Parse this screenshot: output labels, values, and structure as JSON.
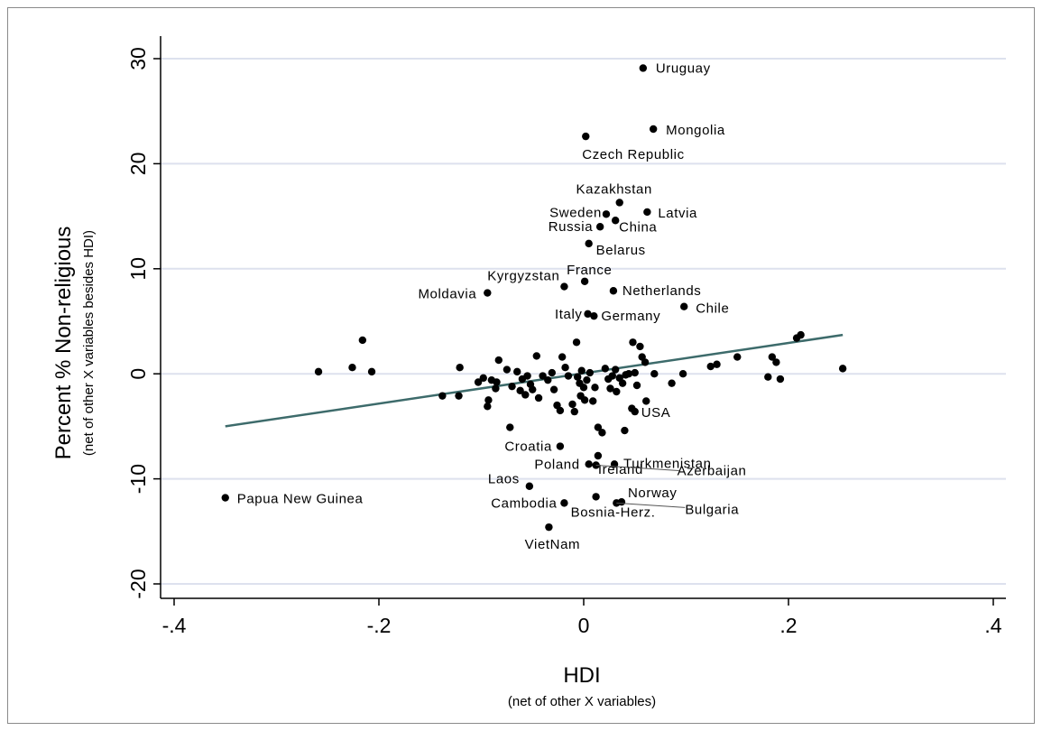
{
  "chart_data": {
    "type": "scatter",
    "xlabel": "HDI",
    "xlabel_sub": "(net of other X variables)",
    "ylabel": "Percent % Non-religious",
    "ylabel_sub": "(net of other X variables besides HDI)",
    "xlim": [
      -0.4,
      0.4
    ],
    "ylim": [
      -20,
      30
    ],
    "x_ticks": [
      -0.4,
      -0.2,
      0,
      0.2,
      0.4
    ],
    "x_tick_labels": [
      "-.4",
      "-.2",
      "0",
      ".2",
      ".4"
    ],
    "y_ticks": [
      -20,
      -10,
      0,
      10,
      20,
      30
    ],
    "y_tick_labels": [
      "-20",
      "-10",
      "0",
      "10",
      "20",
      "30"
    ],
    "grid": "horizontal",
    "colors": {
      "point": "#000000",
      "fit_line": "#3d6b6b",
      "grid": "#dde1ee",
      "axis": "#000000"
    },
    "fit_line": {
      "x": [
        -0.35,
        0.253
      ],
      "y": [
        -5.0,
        3.7
      ]
    },
    "labeled_points": [
      {
        "label": "Uruguay",
        "x": 0.058,
        "y": 29.1
      },
      {
        "label": "Mongolia",
        "x": 0.068,
        "y": 23.3
      },
      {
        "label": "Czech Republic",
        "x": 0.002,
        "y": 22.6
      },
      {
        "label": "Kazakhstan",
        "x": 0.035,
        "y": 16.3
      },
      {
        "label": "Sweden",
        "x": 0.022,
        "y": 15.2
      },
      {
        "label": "Latvia",
        "x": 0.062,
        "y": 15.4
      },
      {
        "label": "China",
        "x": 0.031,
        "y": 14.6
      },
      {
        "label": "Russia",
        "x": 0.016,
        "y": 14.0
      },
      {
        "label": "Belarus",
        "x": 0.005,
        "y": 12.4
      },
      {
        "label": "France",
        "x": 0.001,
        "y": 8.8
      },
      {
        "label": "Kyrgyzstan",
        "x": -0.019,
        "y": 8.3
      },
      {
        "label": "Moldavia",
        "x": -0.094,
        "y": 7.7
      },
      {
        "label": "Netherlands",
        "x": 0.029,
        "y": 7.9
      },
      {
        "label": "Chile",
        "x": 0.098,
        "y": 6.4
      },
      {
        "label": "Italy",
        "x": 0.004,
        "y": 5.7
      },
      {
        "label": "Germany",
        "x": 0.01,
        "y": 5.5
      },
      {
        "label": "USA",
        "x": 0.05,
        "y": -3.6
      },
      {
        "label": "Croatia",
        "x": -0.023,
        "y": -6.9
      },
      {
        "label": "Ireland",
        "x": 0.014,
        "y": -7.8
      },
      {
        "label": "Poland",
        "x": 0.005,
        "y": -8.6
      },
      {
        "label": "Turkmenistan",
        "x": 0.03,
        "y": -8.6
      },
      {
        "label": "Azerbaijan",
        "x": 0.012,
        "y": -8.7
      },
      {
        "label": "Laos",
        "x": -0.053,
        "y": -10.7
      },
      {
        "label": "Papua New Guinea",
        "x": -0.35,
        "y": -11.8
      },
      {
        "label": "Cambodia",
        "x": -0.019,
        "y": -12.3
      },
      {
        "label": "Norway",
        "x": 0.037,
        "y": -12.2
      },
      {
        "label": "Bulgaria",
        "x": 0.032,
        "y": -12.3
      },
      {
        "label": "Bosnia-Herz.",
        "x": 0.012,
        "y": -11.7
      },
      {
        "label": "VietNam",
        "x": -0.034,
        "y": -14.6
      }
    ],
    "other_points": [
      {
        "x": -0.259,
        "y": 0.2
      },
      {
        "x": -0.226,
        "y": 0.6
      },
      {
        "x": -0.216,
        "y": 3.2
      },
      {
        "x": -0.207,
        "y": 0.2
      },
      {
        "x": -0.138,
        "y": -2.1
      },
      {
        "x": -0.122,
        "y": -2.1
      },
      {
        "x": -0.121,
        "y": 0.6
      },
      {
        "x": -0.103,
        "y": -0.8
      },
      {
        "x": -0.098,
        "y": -0.4
      },
      {
        "x": -0.094,
        "y": -3.1
      },
      {
        "x": -0.093,
        "y": -2.5
      },
      {
        "x": -0.09,
        "y": -0.6
      },
      {
        "x": -0.086,
        "y": -1.4
      },
      {
        "x": -0.085,
        "y": -0.8
      },
      {
        "x": -0.083,
        "y": 1.3
      },
      {
        "x": -0.075,
        "y": 0.4
      },
      {
        "x": -0.072,
        "y": -5.1
      },
      {
        "x": -0.07,
        "y": -1.2
      },
      {
        "x": -0.065,
        "y": 0.2
      },
      {
        "x": -0.062,
        "y": -1.6
      },
      {
        "x": -0.06,
        "y": -0.5
      },
      {
        "x": -0.057,
        "y": -2.0
      },
      {
        "x": -0.055,
        "y": -0.2
      },
      {
        "x": -0.052,
        "y": -1.0
      },
      {
        "x": -0.05,
        "y": -1.5
      },
      {
        "x": -0.046,
        "y": 1.7
      },
      {
        "x": -0.044,
        "y": -2.3
      },
      {
        "x": -0.04,
        "y": -0.2
      },
      {
        "x": -0.035,
        "y": -0.6
      },
      {
        "x": -0.031,
        "y": 0.1
      },
      {
        "x": -0.029,
        "y": -1.5
      },
      {
        "x": -0.026,
        "y": -3.0
      },
      {
        "x": -0.023,
        "y": -3.5
      },
      {
        "x": -0.021,
        "y": 1.6
      },
      {
        "x": -0.018,
        "y": 0.6
      },
      {
        "x": -0.015,
        "y": -0.2
      },
      {
        "x": -0.011,
        "y": -2.9
      },
      {
        "x": -0.009,
        "y": -3.6
      },
      {
        "x": -0.007,
        "y": 3.0
      },
      {
        "x": -0.006,
        "y": -0.3
      },
      {
        "x": -0.004,
        "y": -0.9
      },
      {
        "x": -0.003,
        "y": -2.1
      },
      {
        "x": -0.002,
        "y": 0.3
      },
      {
        "x": 0.0,
        "y": -1.3
      },
      {
        "x": 0.001,
        "y": -2.5
      },
      {
        "x": 0.003,
        "y": -0.6
      },
      {
        "x": 0.006,
        "y": 0.1
      },
      {
        "x": 0.009,
        "y": -2.6
      },
      {
        "x": 0.011,
        "y": -1.3
      },
      {
        "x": 0.014,
        "y": -5.1
      },
      {
        "x": 0.018,
        "y": -5.6
      },
      {
        "x": 0.021,
        "y": 0.5
      },
      {
        "x": 0.024,
        "y": -0.5
      },
      {
        "x": 0.026,
        "y": -1.4
      },
      {
        "x": 0.028,
        "y": -0.2
      },
      {
        "x": 0.031,
        "y": 0.4
      },
      {
        "x": 0.032,
        "y": -1.7
      },
      {
        "x": 0.035,
        "y": -0.4
      },
      {
        "x": 0.038,
        "y": -0.9
      },
      {
        "x": 0.04,
        "y": -5.4
      },
      {
        "x": 0.041,
        "y": -0.1
      },
      {
        "x": 0.044,
        "y": 0.0
      },
      {
        "x": 0.047,
        "y": -3.3
      },
      {
        "x": 0.048,
        "y": 3.0
      },
      {
        "x": 0.05,
        "y": 0.1
      },
      {
        "x": 0.052,
        "y": -1.1
      },
      {
        "x": 0.055,
        "y": 2.6
      },
      {
        "x": 0.057,
        "y": 1.6
      },
      {
        "x": 0.06,
        "y": 1.1
      },
      {
        "x": 0.061,
        "y": -2.6
      },
      {
        "x": 0.069,
        "y": 0.0
      },
      {
        "x": 0.086,
        "y": -0.9
      },
      {
        "x": 0.097,
        "y": 0.0
      },
      {
        "x": 0.124,
        "y": 0.7
      },
      {
        "x": 0.13,
        "y": 0.9
      },
      {
        "x": 0.15,
        "y": 1.6
      },
      {
        "x": 0.18,
        "y": -0.3
      },
      {
        "x": 0.184,
        "y": 1.6
      },
      {
        "x": 0.188,
        "y": 1.1
      },
      {
        "x": 0.192,
        "y": -0.5
      },
      {
        "x": 0.208,
        "y": 3.4
      },
      {
        "x": 0.212,
        "y": 3.7
      },
      {
        "x": 0.253,
        "y": 0.5
      }
    ]
  }
}
